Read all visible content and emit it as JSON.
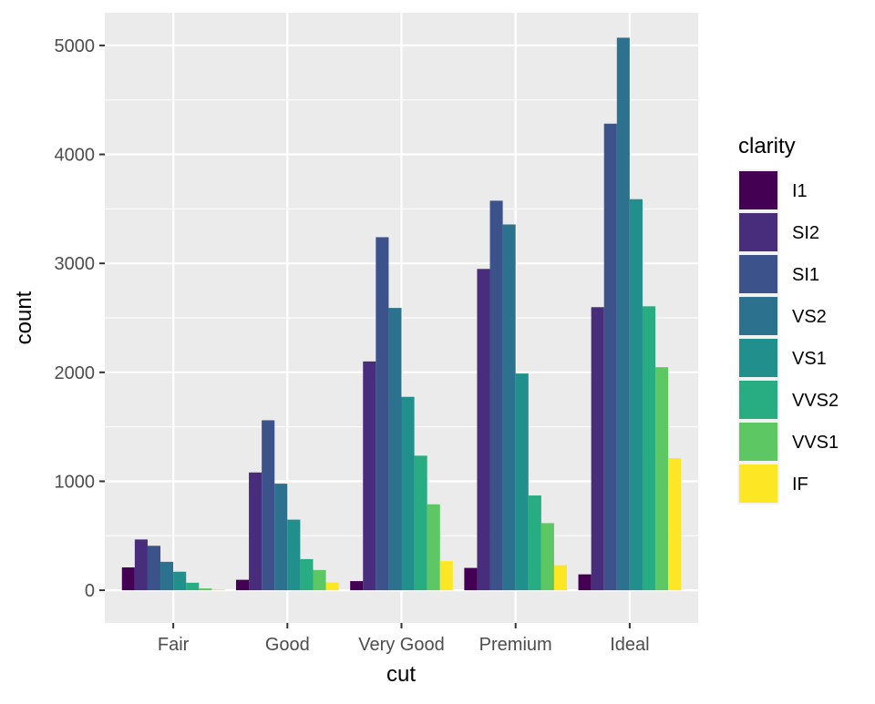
{
  "chart_data": {
    "type": "bar",
    "xlabel": "cut",
    "ylabel": "count",
    "categories": [
      "Fair",
      "Good",
      "Very Good",
      "Premium",
      "Ideal"
    ],
    "ylim": [
      -300,
      5300
    ],
    "yticks": [
      0,
      1000,
      2000,
      3000,
      4000,
      5000
    ],
    "grid": true,
    "legend": {
      "title": "clarity",
      "position": "right"
    },
    "series": [
      {
        "name": "I1",
        "color": "#440154",
        "values": [
          210,
          96,
          84,
          205,
          146
        ]
      },
      {
        "name": "SI2",
        "color": "#472D7B",
        "values": [
          466,
          1081,
          2100,
          2949,
          2598
        ]
      },
      {
        "name": "SI1",
        "color": "#3B528B",
        "values": [
          408,
          1560,
          3240,
          3575,
          4282
        ]
      },
      {
        "name": "VS2",
        "color": "#2C728E",
        "values": [
          261,
          978,
          2591,
          3357,
          5071
        ]
      },
      {
        "name": "VS1",
        "color": "#21908C",
        "values": [
          170,
          648,
          1775,
          1989,
          3589
        ]
      },
      {
        "name": "VVS2",
        "color": "#27AD81",
        "values": [
          69,
          286,
          1235,
          870,
          2606
        ]
      },
      {
        "name": "VVS1",
        "color": "#5DC863",
        "values": [
          17,
          186,
          789,
          616,
          2047
        ]
      },
      {
        "name": "IF",
        "color": "#FDE725",
        "values": [
          9,
          71,
          268,
          230,
          1212
        ]
      }
    ]
  }
}
